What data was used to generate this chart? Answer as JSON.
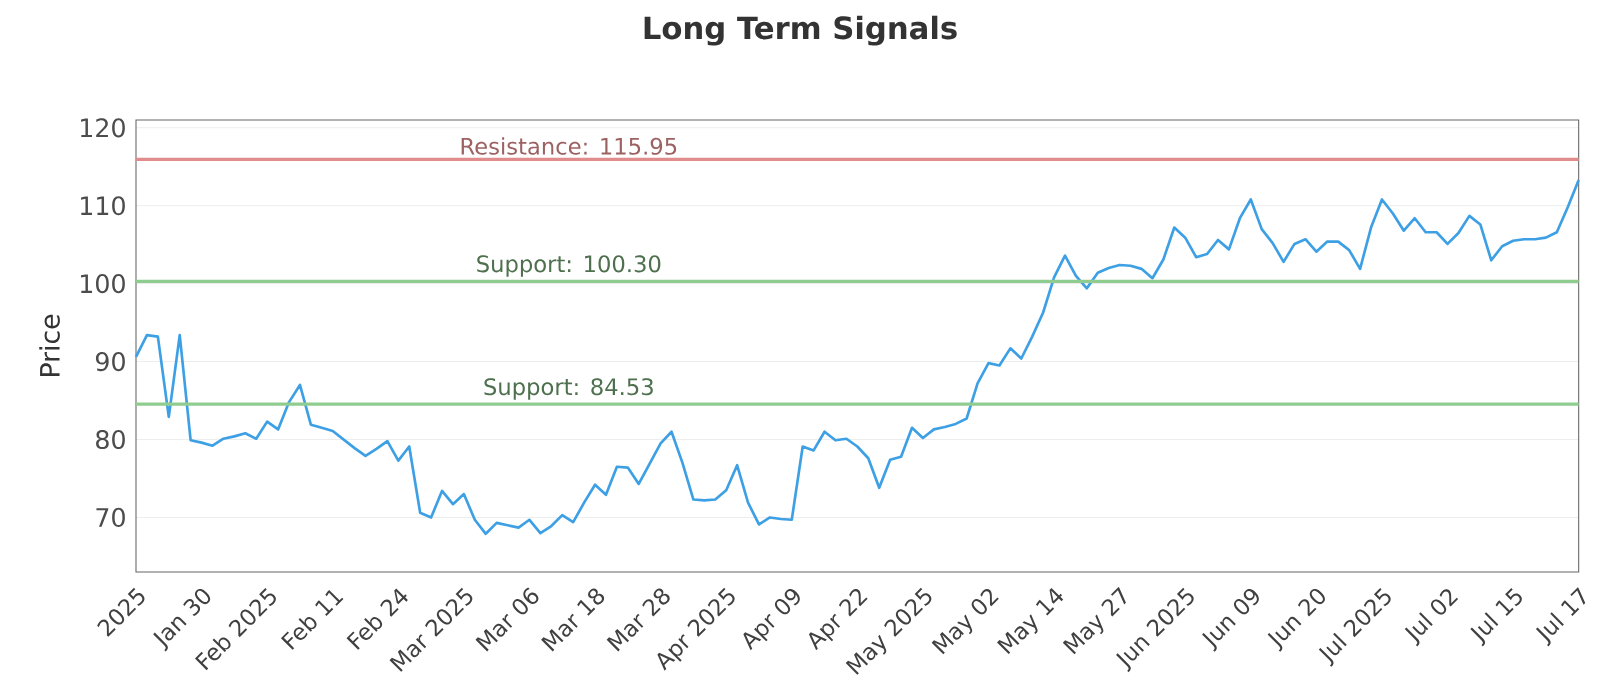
{
  "chart_data": {
    "type": "line",
    "title": "Long Term Signals",
    "ylabel": "Price",
    "categories": [
      "2025",
      null,
      null,
      null,
      null,
      null,
      "Jan 30",
      null,
      null,
      null,
      null,
      null,
      "Feb 2025",
      null,
      null,
      null,
      null,
      null,
      "Feb 11",
      null,
      null,
      null,
      null,
      null,
      "Feb 24",
      null,
      null,
      null,
      null,
      null,
      "Mar 2025",
      null,
      null,
      null,
      null,
      null,
      "Mar 06",
      null,
      null,
      null,
      null,
      null,
      "Mar 18",
      null,
      null,
      null,
      null,
      null,
      "Mar 28",
      null,
      null,
      null,
      null,
      null,
      "Apr 2025",
      null,
      null,
      null,
      null,
      null,
      "Apr 09",
      null,
      null,
      null,
      null,
      null,
      "Apr 22",
      null,
      null,
      null,
      null,
      null,
      "May 2025",
      null,
      null,
      null,
      null,
      null,
      "May 02",
      null,
      null,
      null,
      null,
      null,
      "May 14",
      null,
      null,
      null,
      null,
      null,
      "May 27",
      null,
      null,
      null,
      null,
      null,
      "Jun 2025",
      null,
      null,
      null,
      null,
      null,
      "Jun 09",
      null,
      null,
      null,
      null,
      null,
      "Jun 20",
      null,
      null,
      null,
      null,
      null,
      "Jul 2025",
      null,
      null,
      null,
      null,
      null,
      "Jul 02",
      null,
      null,
      null,
      null,
      null,
      "Jul 15",
      null,
      null,
      null,
      null,
      null,
      "Jul 17"
    ],
    "ylim": [
      63,
      121
    ],
    "yticks": [
      70,
      80,
      90,
      100,
      110,
      120
    ],
    "grid": "y",
    "marker": "none",
    "line_style": "solid",
    "ref_lines": [
      {
        "axis": "y",
        "value": 115.95,
        "label": "Resistance: 115.95",
        "color": "#e08c8c"
      },
      {
        "axis": "y",
        "value": 100.3,
        "label": "Support: 100.30",
        "color": "#8fcc8f"
      },
      {
        "axis": "y",
        "value": 84.53,
        "label": "Support: 84.53",
        "color": "#8fcc8f"
      }
    ],
    "series": [
      {
        "color": "#3ea0e4",
        "values": [
          90.6,
          93.4,
          93.2,
          82.9,
          93.4,
          79.9,
          79.6,
          79.2,
          80.1,
          80.4,
          80.8,
          80.1,
          82.3,
          81.3,
          84.8,
          87.0,
          81.9,
          81.5,
          81.1,
          80.0,
          78.9,
          77.9,
          78.8,
          79.8,
          77.3,
          79.1,
          70.6,
          70.0,
          73.4,
          71.7,
          73.0,
          69.7,
          67.9,
          69.3,
          69.0,
          68.7,
          69.7,
          68.0,
          68.9,
          70.3,
          69.4,
          71.9,
          74.2,
          72.9,
          76.5,
          76.4,
          74.3,
          76.9,
          79.5,
          81.0,
          77.0,
          72.3,
          72.2,
          72.3,
          73.5,
          76.7,
          71.9,
          69.1,
          70.0,
          69.8,
          69.7,
          79.1,
          78.6,
          81.0,
          79.9,
          80.1,
          79.1,
          77.6,
          73.8,
          77.4,
          77.8,
          81.5,
          80.2,
          81.3,
          81.6,
          82.0,
          82.7,
          87.2,
          89.8,
          89.5,
          91.7,
          90.4,
          93.2,
          96.3,
          100.8,
          103.6,
          101.0,
          99.4,
          101.4,
          102.0,
          102.4,
          102.3,
          101.9,
          100.7,
          103.1,
          107.2,
          105.9,
          103.4,
          103.8,
          105.6,
          104.4,
          108.4,
          110.8,
          107.0,
          105.2,
          102.8,
          105.1,
          105.7,
          104.1,
          105.4,
          105.4,
          104.3,
          101.9,
          107.2,
          110.8,
          109.0,
          106.8,
          108.4,
          106.6,
          106.6,
          105.1,
          106.5,
          108.7,
          107.6,
          103.0,
          104.8,
          105.5,
          105.7,
          105.7,
          105.9,
          106.6,
          109.8,
          113.3
        ]
      }
    ]
  }
}
